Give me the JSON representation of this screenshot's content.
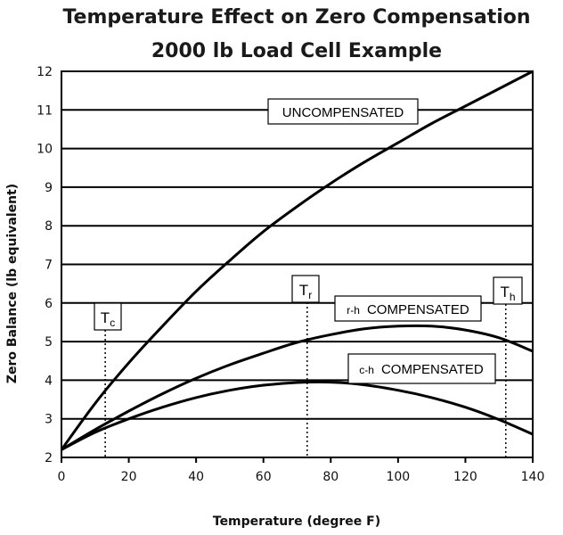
{
  "chart_data": {
    "type": "line",
    "title": "Temperature Effect on Zero Compensation",
    "subtitle": "2000 lb Load Cell Example",
    "xlabel": "Temperature (degree F)",
    "ylabel": "Zero Balance (lb equivalent)",
    "xlim": [
      0,
      140
    ],
    "ylim": [
      2,
      12
    ],
    "xticks": [
      0,
      20,
      40,
      60,
      80,
      100,
      120,
      140
    ],
    "yticks": [
      2,
      3,
      4,
      5,
      6,
      7,
      8,
      9,
      10,
      11,
      12
    ],
    "grid": "horizontal",
    "series": [
      {
        "name": "UNCOMPENSATED",
        "x": [
          0,
          10,
          20,
          30,
          40,
          50,
          60,
          70,
          80,
          90,
          100,
          110,
          120,
          130,
          140
        ],
        "y": [
          2.2,
          3.4,
          4.45,
          5.4,
          6.3,
          7.1,
          7.85,
          8.5,
          9.1,
          9.65,
          10.15,
          10.65,
          11.1,
          11.55,
          12.0
        ]
      },
      {
        "name": "r-h COMPENSATED",
        "x": [
          0,
          10,
          20,
          30,
          40,
          50,
          60,
          70,
          80,
          90,
          100,
          110,
          120,
          130,
          140
        ],
        "y": [
          2.2,
          2.72,
          3.2,
          3.65,
          4.05,
          4.4,
          4.7,
          4.98,
          5.18,
          5.33,
          5.4,
          5.4,
          5.3,
          5.1,
          4.75
        ]
      },
      {
        "name": "c-h COMPENSATED",
        "x": [
          0,
          10,
          20,
          30,
          40,
          50,
          60,
          70,
          80,
          90,
          100,
          110,
          120,
          130,
          140
        ],
        "y": [
          2.2,
          2.65,
          3.0,
          3.3,
          3.55,
          3.74,
          3.87,
          3.94,
          3.95,
          3.88,
          3.74,
          3.55,
          3.3,
          2.98,
          2.6
        ]
      }
    ],
    "annotations": [
      {
        "label": "UNCOMPENSATED"
      },
      {
        "prefix": "r-h",
        "label": "COMPENSATED"
      },
      {
        "prefix": "c-h",
        "label": "COMPENSATED"
      }
    ],
    "markers": [
      {
        "letter": "T",
        "sub": "c",
        "x": 13
      },
      {
        "letter": "T",
        "sub": "r",
        "x": 73
      },
      {
        "letter": "T",
        "sub": "h",
        "x": 132
      }
    ]
  }
}
